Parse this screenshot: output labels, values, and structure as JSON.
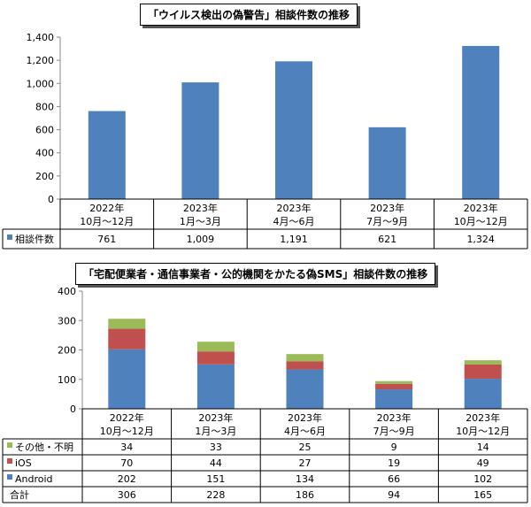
{
  "chart_data": [
    {
      "type": "bar",
      "title": "「ウイルス検出の偽警告」相談件数の推移",
      "categories": [
        [
          "2022年",
          "10月～12月"
        ],
        [
          "2023年",
          "1月～3月"
        ],
        [
          "2023年",
          "4月～6月"
        ],
        [
          "2023年",
          "7月～9月"
        ],
        [
          "2023年",
          "10月～12月"
        ]
      ],
      "series": [
        {
          "name": "相談件数",
          "values": [
            761,
            1009,
            1191,
            621,
            1324
          ],
          "color": "#4f81bd"
        }
      ],
      "table_values": [
        "761",
        "1,009",
        "1,191",
        "621",
        "1,324"
      ],
      "yticks": [
        "0",
        "200",
        "400",
        "600",
        "800",
        "1,000",
        "1,200",
        "1,400"
      ],
      "ylim": [
        0,
        1400
      ],
      "grid": false,
      "legend": "data-table"
    },
    {
      "type": "bar",
      "stacked": true,
      "title": "「宅配便業者・通信事業者・公的機関をかたる偽SMS」相談件数の推移",
      "categories": [
        [
          "2022年",
          "10月～12月"
        ],
        [
          "2023年",
          "1月～3月"
        ],
        [
          "2023年",
          "4月～6月"
        ],
        [
          "2023年",
          "7月～9月"
        ],
        [
          "2023年",
          "10月～12月"
        ]
      ],
      "series": [
        {
          "name": "Android",
          "values": [
            202,
            151,
            134,
            66,
            102
          ],
          "color": "#4f81bd"
        },
        {
          "name": "iOS",
          "values": [
            70,
            44,
            27,
            19,
            49
          ],
          "color": "#c0504d"
        },
        {
          "name": "その他・不明",
          "values": [
            34,
            33,
            25,
            9,
            14
          ],
          "color": "#9bbb59"
        }
      ],
      "totals_label": "合計",
      "totals": [
        306,
        228,
        186,
        94,
        165
      ],
      "yticks": [
        "0",
        "100",
        "200",
        "300",
        "400"
      ],
      "ylim": [
        0,
        400
      ],
      "grid": false,
      "legend": "data-table"
    }
  ]
}
